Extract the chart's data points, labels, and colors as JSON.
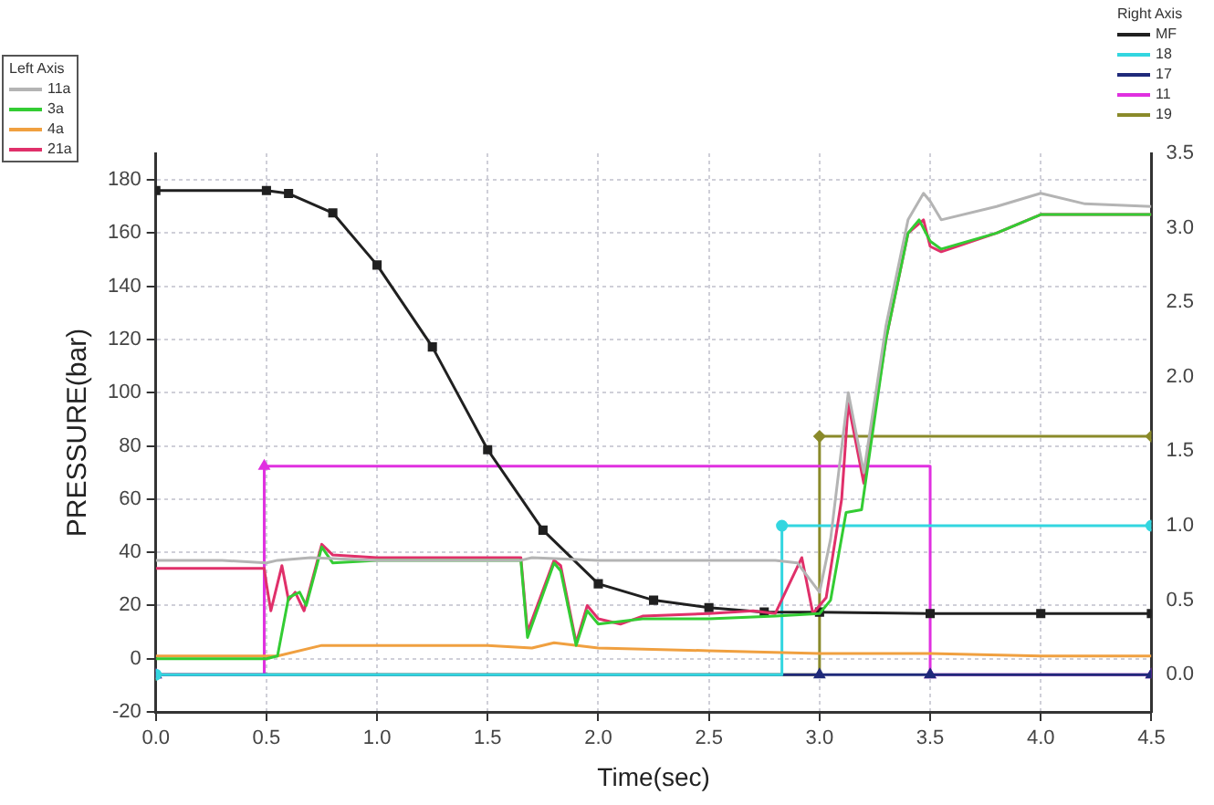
{
  "chart_data": {
    "type": "line",
    "xlabel": "Time(sec)",
    "ylabel": "PRESSURE(bar)",
    "legend": "top left",
    "legend_title": "Left Axis",
    "annotations": [
      "Right Axis"
    ],
    "grid": true,
    "xlim": [
      0,
      4.5
    ],
    "xticks": [
      {
        "value": 0,
        "label": "0.0"
      },
      0.5,
      {
        "value": 1,
        "label": "1.0"
      },
      1.5,
      {
        "value": 2,
        "label": "2.0"
      },
      2.5,
      {
        "value": 3,
        "label": "3.0"
      },
      3.5,
      {
        "value": 4,
        "label": "4.0"
      },
      4.5
    ],
    "ylim": [
      -20,
      190
    ],
    "yticks": [
      -20,
      0,
      20,
      40,
      60,
      80,
      100,
      120,
      140,
      160,
      180
    ],
    "y2lim": [
      -0.25,
      3.5
    ],
    "y2ticks": [
      {
        "value": 0,
        "label": "0.0"
      },
      0.5,
      {
        "value": 1,
        "label": "1.0"
      },
      1.5,
      {
        "value": 2,
        "label": "2.0"
      },
      2.5,
      {
        "value": 3,
        "label": "3.0"
      },
      3.5
    ],
    "series": [
      {
        "name": "11a",
        "color": "#b4b4b4",
        "marker": "none",
        "x": [
          0,
          0.3,
          0.5,
          0.55,
          0.7,
          1,
          1.5,
          1.65,
          1.7,
          2,
          2.5,
          2.8,
          2.9,
          3,
          3.05,
          3.13,
          3.2,
          3.3,
          3.4,
          3.47,
          3.5,
          3.55,
          3.8,
          4,
          4.2,
          4.5
        ],
        "values": [
          37,
          37,
          36,
          37,
          38,
          37,
          37,
          37,
          38,
          37,
          37,
          37,
          36,
          25,
          45,
          100,
          70,
          125,
          165,
          175,
          172,
          165,
          170,
          175,
          171,
          170
        ]
      },
      {
        "name": "3a",
        "color": "#33cc33",
        "marker": "none",
        "x": [
          0,
          0.5,
          0.55,
          0.6,
          0.65,
          0.68,
          0.75,
          0.8,
          1,
          1.5,
          1.65,
          1.68,
          1.8,
          1.83,
          1.9,
          1.95,
          2,
          2.2,
          2.5,
          2.8,
          3,
          3.05,
          3.12,
          3.19,
          3.3,
          3.4,
          3.45,
          3.5,
          3.55,
          3.8,
          4,
          4.5
        ],
        "values": [
          0,
          0,
          1,
          23,
          25,
          20,
          42,
          36,
          37,
          37,
          37,
          8,
          36,
          33,
          5,
          18,
          13,
          15,
          15,
          16,
          17,
          22,
          55,
          56,
          120,
          160,
          165,
          157,
          154,
          160,
          167,
          167
        ]
      },
      {
        "name": "4a",
        "color": "#f0a040",
        "marker": "none",
        "x": [
          0,
          0.5,
          0.55,
          0.75,
          1,
          1.5,
          1.7,
          1.8,
          2,
          2.5,
          3,
          3.5,
          4,
          4.5
        ],
        "values": [
          1,
          1,
          1,
          5,
          5,
          5,
          4,
          6,
          4,
          3,
          2,
          2,
          1,
          1
        ]
      },
      {
        "name": "21a",
        "color": "#e0306a",
        "marker": "none",
        "x": [
          0,
          0.49,
          0.5,
          0.52,
          0.57,
          0.6,
          0.63,
          0.67,
          0.75,
          0.8,
          1,
          1.5,
          1.65,
          1.68,
          1.8,
          1.83,
          1.9,
          1.95,
          2,
          2.1,
          2.2,
          2.5,
          2.7,
          2.8,
          2.92,
          2.97,
          3.03,
          3.1,
          3.13,
          3.2,
          3.3,
          3.4,
          3.47,
          3.5,
          3.55,
          3.8,
          4,
          4.5
        ],
        "values": [
          34,
          34,
          28,
          18,
          35,
          22,
          25,
          18,
          43,
          39,
          38,
          38,
          38,
          10,
          37,
          35,
          6,
          20,
          15,
          13,
          16,
          17,
          18,
          17,
          38,
          17,
          23,
          60,
          96,
          66,
          120,
          160,
          165,
          155,
          153,
          160,
          167,
          167
        ]
      },
      {
        "name": "MF",
        "color": "#202020",
        "marker": "square",
        "axis": "y2",
        "x": [
          0,
          0.5,
          0.6,
          0.8,
          1,
          1.25,
          1.5,
          1.75,
          2,
          2.25,
          2.5,
          2.75,
          3,
          3.5,
          4,
          4.5
        ],
        "values": [
          3.25,
          3.25,
          3.23,
          3.1,
          2.75,
          2.2,
          1.51,
          0.97,
          0.61,
          0.5,
          0.45,
          0.42,
          0.42,
          0.41,
          0.41,
          0.41
        ]
      },
      {
        "name": "18",
        "type": "step",
        "color": "#33d6e0",
        "marker": "circle",
        "axis": "y2",
        "x": [
          0,
          2.83,
          4.5
        ],
        "values": [
          0,
          1,
          1
        ]
      },
      {
        "name": "17",
        "type": "step",
        "color": "#1f2a7a",
        "marker": "triangle",
        "axis": "y2",
        "x": [
          0,
          3,
          3.5,
          4.5
        ],
        "values": [
          0,
          0,
          0,
          0
        ]
      },
      {
        "name": "11",
        "type": "step",
        "color": "#e030e0",
        "marker": "triangle",
        "axis": "y2",
        "x": [
          0,
          0.49,
          3.5,
          4.5
        ],
        "values": [
          0,
          1.4,
          0,
          0
        ]
      },
      {
        "name": "19",
        "type": "step",
        "color": "#8a8a2a",
        "marker": "diamond",
        "axis": "y2",
        "x": [
          0,
          3,
          4.5
        ],
        "values": [
          0,
          1.6,
          1.6
        ]
      }
    ]
  }
}
